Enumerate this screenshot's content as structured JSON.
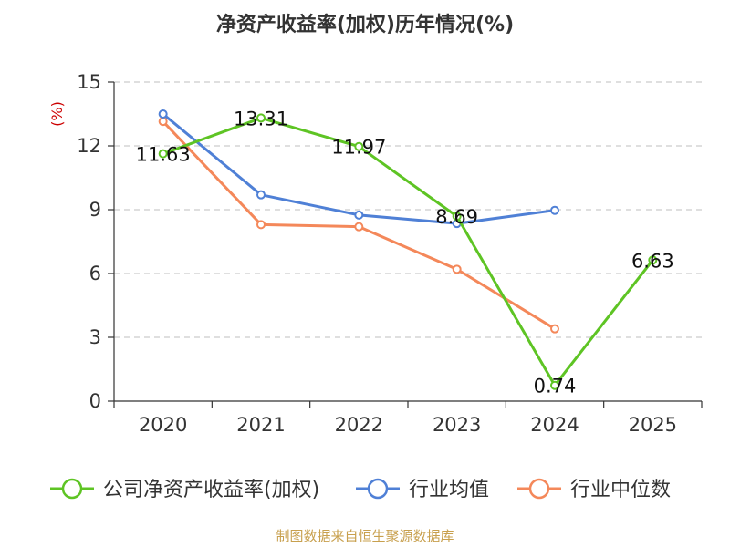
{
  "chart_data": {
    "type": "line",
    "title": "净资产收益率(加权)历年情况(%)",
    "ylabel": "(%)",
    "xlabel": "",
    "categories": [
      "2020",
      "2021",
      "2022",
      "2023",
      "2024",
      "2025"
    ],
    "ylim": [
      0,
      15
    ],
    "yticks": [
      0,
      3,
      6,
      9,
      12,
      15
    ],
    "grid": true,
    "legend_position": "bottom",
    "series": [
      {
        "name": "公司净资产收益率(加权)",
        "color": "#5ec424",
        "values": [
          11.63,
          13.31,
          11.97,
          8.69,
          0.74,
          6.63
        ],
        "labels": [
          "11.63",
          "13.31",
          "11.97",
          "8.69",
          "0.74",
          "6.63"
        ]
      },
      {
        "name": "行业均值",
        "color": "#4f80d6",
        "values": [
          13.5,
          9.7,
          8.75,
          8.35,
          8.97,
          null
        ]
      },
      {
        "name": "行业中位数",
        "color": "#f4885a",
        "values": [
          13.15,
          8.3,
          8.2,
          6.2,
          3.4,
          null
        ]
      }
    ]
  },
  "colors": {
    "ylabel": "#cc0000",
    "source": "#c8a04e",
    "grid": "#cccccc",
    "axis": "#333333"
  },
  "source": "制图数据来自恒生聚源数据库"
}
